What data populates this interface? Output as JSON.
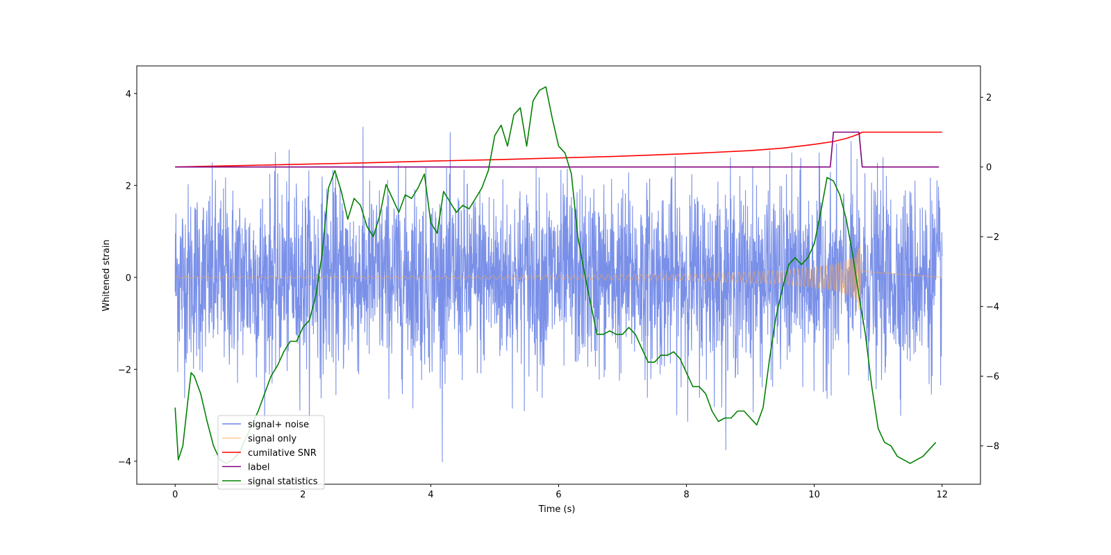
{
  "chart_data": {
    "type": "line",
    "title": "",
    "xlabel": "Time (s)",
    "ylabel": "Whitened strain",
    "y2label": "",
    "xlim": [
      -0.6,
      12.6
    ],
    "ylim": [
      -4.5,
      4.6
    ],
    "y2lim": [
      -9.1,
      2.9
    ],
    "x_ticks": [
      0,
      2,
      4,
      6,
      8,
      10,
      12
    ],
    "y_ticks": [
      -4,
      -2,
      0,
      2,
      4
    ],
    "y2_ticks": [
      -8,
      -6,
      -4,
      -2,
      0,
      2
    ],
    "grid": false,
    "legend_placement": "lower-left",
    "series": [
      {
        "name": "signal+ noise",
        "axis": "left",
        "color": "#6b84e6",
        "kind": "noisy-strain",
        "x_range": [
          0,
          12
        ],
        "typical_range": [
          -2.3,
          2.4
        ],
        "max": 4.2,
        "min": -4.1
      },
      {
        "name": "signal only",
        "axis": "left",
        "color": "#ffa64d",
        "kind": "chirp",
        "x_range": [
          0,
          10.72
        ],
        "envelope": [
          {
            "x": 0,
            "a": 0.02
          },
          {
            "x": 4,
            "a": 0.03
          },
          {
            "x": 8,
            "a": 0.07
          },
          {
            "x": 9.5,
            "a": 0.15
          },
          {
            "x": 10.3,
            "a": 0.28
          },
          {
            "x": 10.65,
            "a": 0.45
          },
          {
            "x": 10.7,
            "a": 0.72
          }
        ]
      },
      {
        "name": "cumilative SNR",
        "axis": "right",
        "color": "#ff0000",
        "x": [
          0,
          1,
          2,
          3,
          4,
          5,
          6,
          7,
          8,
          9,
          9.5,
          10,
          10.3,
          10.5,
          10.6,
          10.7,
          10.75,
          11,
          12
        ],
        "y": [
          0.0,
          0.04,
          0.08,
          0.12,
          0.17,
          0.21,
          0.26,
          0.31,
          0.38,
          0.47,
          0.54,
          0.65,
          0.73,
          0.82,
          0.88,
          0.95,
          1.0,
          1.0,
          1.0
        ]
      },
      {
        "name": "label",
        "axis": "right",
        "color": "#800080",
        "x": [
          0,
          10.25,
          10.3,
          10.7,
          10.75,
          11.95
        ],
        "y": [
          0,
          0,
          1,
          1,
          0,
          0
        ]
      },
      {
        "name": "signal statistics",
        "axis": "right",
        "color": "#008000",
        "x": [
          0,
          0.05,
          0.12,
          0.2,
          0.25,
          0.3,
          0.4,
          0.5,
          0.6,
          0.7,
          0.8,
          0.9,
          1.0,
          1.1,
          1.2,
          1.3,
          1.4,
          1.5,
          1.6,
          1.7,
          1.8,
          1.9,
          2.0,
          2.1,
          2.2,
          2.3,
          2.4,
          2.5,
          2.6,
          2.7,
          2.8,
          2.9,
          3.0,
          3.1,
          3.2,
          3.3,
          3.4,
          3.5,
          3.6,
          3.7,
          3.8,
          3.9,
          4.0,
          4.1,
          4.2,
          4.3,
          4.4,
          4.5,
          4.6,
          4.7,
          4.8,
          4.9,
          5.0,
          5.1,
          5.2,
          5.3,
          5.4,
          5.5,
          5.6,
          5.7,
          5.8,
          5.9,
          6.0,
          6.1,
          6.2,
          6.3,
          6.4,
          6.5,
          6.6,
          6.7,
          6.8,
          6.9,
          7.0,
          7.1,
          7.2,
          7.3,
          7.4,
          7.5,
          7.6,
          7.7,
          7.8,
          7.9,
          8.0,
          8.1,
          8.2,
          8.3,
          8.4,
          8.5,
          8.6,
          8.7,
          8.8,
          8.9,
          9.0,
          9.1,
          9.2,
          9.3,
          9.4,
          9.5,
          9.6,
          9.7,
          9.8,
          9.9,
          10.0,
          10.1,
          10.2,
          10.3,
          10.4,
          10.5,
          10.6,
          10.7,
          10.8,
          10.9,
          11.0,
          11.1,
          11.2,
          11.3,
          11.4,
          11.5,
          11.6,
          11.7,
          11.8,
          11.9
        ],
        "y": [
          -6.9,
          -8.4,
          -8.0,
          -6.7,
          -5.9,
          -6.0,
          -6.5,
          -7.3,
          -8.0,
          -8.4,
          -8.5,
          -8.4,
          -8.2,
          -7.8,
          -7.4,
          -7.0,
          -6.5,
          -6.0,
          -5.7,
          -5.3,
          -5.0,
          -5.0,
          -4.6,
          -4.4,
          -3.7,
          -2.5,
          -0.6,
          -0.1,
          -0.7,
          -1.5,
          -0.9,
          -1.1,
          -1.7,
          -2.0,
          -1.4,
          -0.5,
          -0.9,
          -1.3,
          -0.8,
          -0.9,
          -0.6,
          -0.2,
          -1.6,
          -1.9,
          -0.7,
          -1.0,
          -1.3,
          -1.1,
          -1.2,
          -0.9,
          -0.6,
          -0.1,
          0.9,
          1.2,
          0.6,
          1.5,
          1.7,
          0.6,
          1.9,
          2.2,
          2.3,
          1.4,
          0.6,
          0.4,
          -0.2,
          -2.0,
          -3.0,
          -3.9,
          -4.8,
          -4.8,
          -4.7,
          -4.8,
          -4.8,
          -4.6,
          -4.8,
          -5.2,
          -5.6,
          -5.6,
          -5.4,
          -5.4,
          -5.3,
          -5.5,
          -5.9,
          -6.3,
          -6.3,
          -6.5,
          -7.0,
          -7.3,
          -7.2,
          -7.2,
          -7.0,
          -7.0,
          -7.2,
          -7.4,
          -6.9,
          -5.5,
          -4.3,
          -3.5,
          -2.8,
          -2.6,
          -2.8,
          -2.6,
          -2.2,
          -1.3,
          -0.3,
          -0.4,
          -0.8,
          -1.5,
          -2.5,
          -3.7,
          -4.8,
          -6.3,
          -7.5,
          -7.9,
          -8.0,
          -8.3,
          -8.4,
          -8.5,
          -8.4,
          -8.3,
          -8.1,
          -7.9
        ]
      }
    ]
  }
}
